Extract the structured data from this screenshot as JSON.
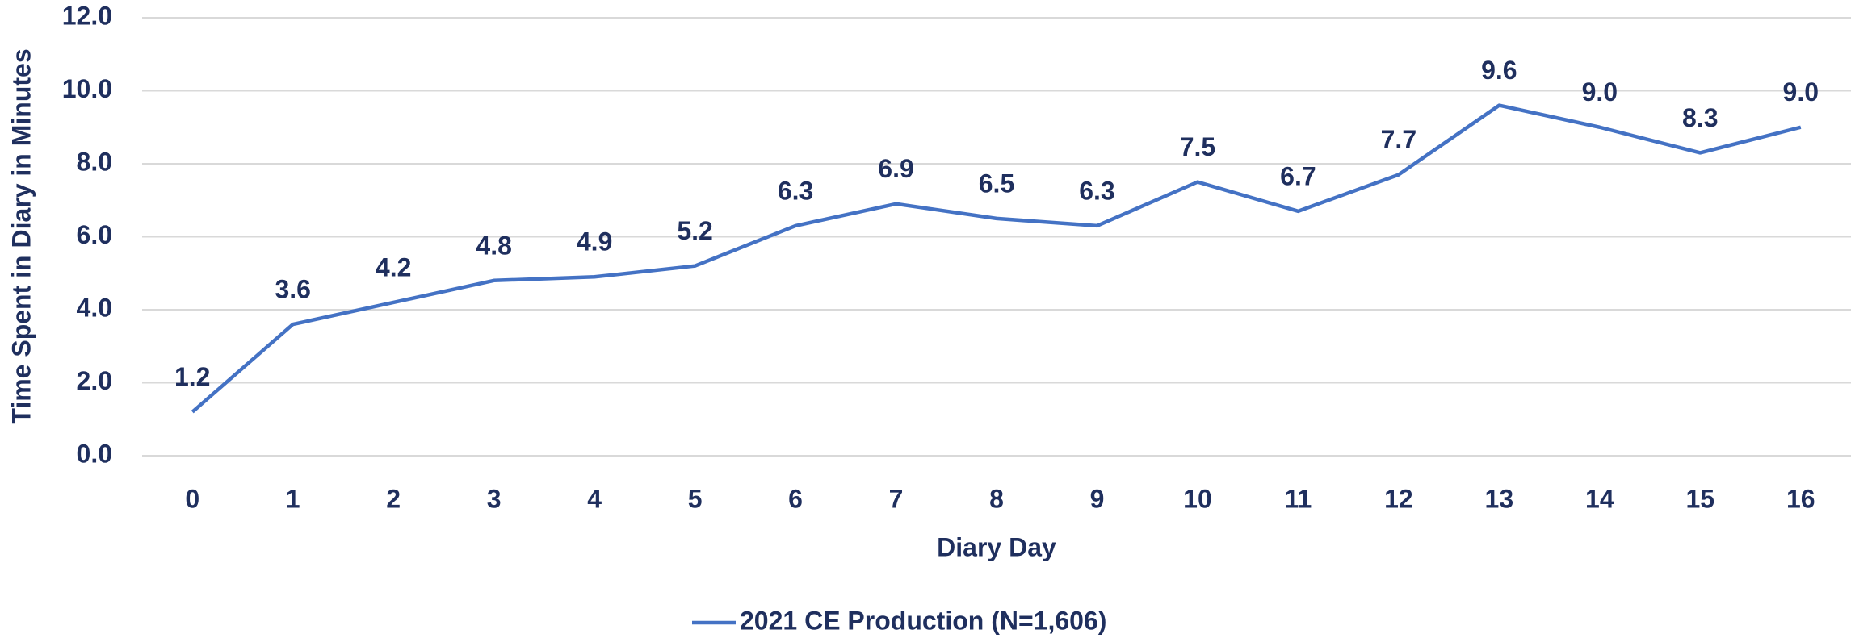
{
  "chart_data": {
    "type": "line",
    "x_label": "Diary Day",
    "y_label": "Time Spent in Diary in Minutes",
    "categories": [
      "0",
      "1",
      "2",
      "3",
      "4",
      "5",
      "6",
      "7",
      "8",
      "9",
      "10",
      "11",
      "12",
      "13",
      "14",
      "15",
      "16"
    ],
    "series": [
      {
        "name": "2021 CE Production (N=1,606)",
        "color": "#4472c4",
        "values": [
          1.2,
          3.6,
          4.2,
          4.8,
          4.9,
          5.2,
          6.3,
          6.9,
          6.5,
          6.3,
          7.5,
          6.7,
          7.7,
          9.6,
          9.0,
          8.3,
          9.0
        ],
        "value_labels": [
          "1.2",
          "3.6",
          "4.2",
          "4.8",
          "4.9",
          "5.2",
          "6.3",
          "6.9",
          "6.5",
          "6.3",
          "7.5",
          "6.7",
          "7.7",
          "9.6",
          "9.0",
          "8.3",
          "9.0"
        ]
      }
    ],
    "ylim": [
      0,
      12
    ],
    "yticks": [
      {
        "value": 0,
        "label": "0.0"
      },
      {
        "value": 2,
        "label": "2.0"
      },
      {
        "value": 4,
        "label": "4.0"
      },
      {
        "value": 6,
        "label": "6.0"
      },
      {
        "value": 8,
        "label": "8.0"
      },
      {
        "value": 10,
        "label": "10.0"
      },
      {
        "value": 12,
        "label": "12.0"
      }
    ],
    "grid": true,
    "legend": "bottom"
  }
}
